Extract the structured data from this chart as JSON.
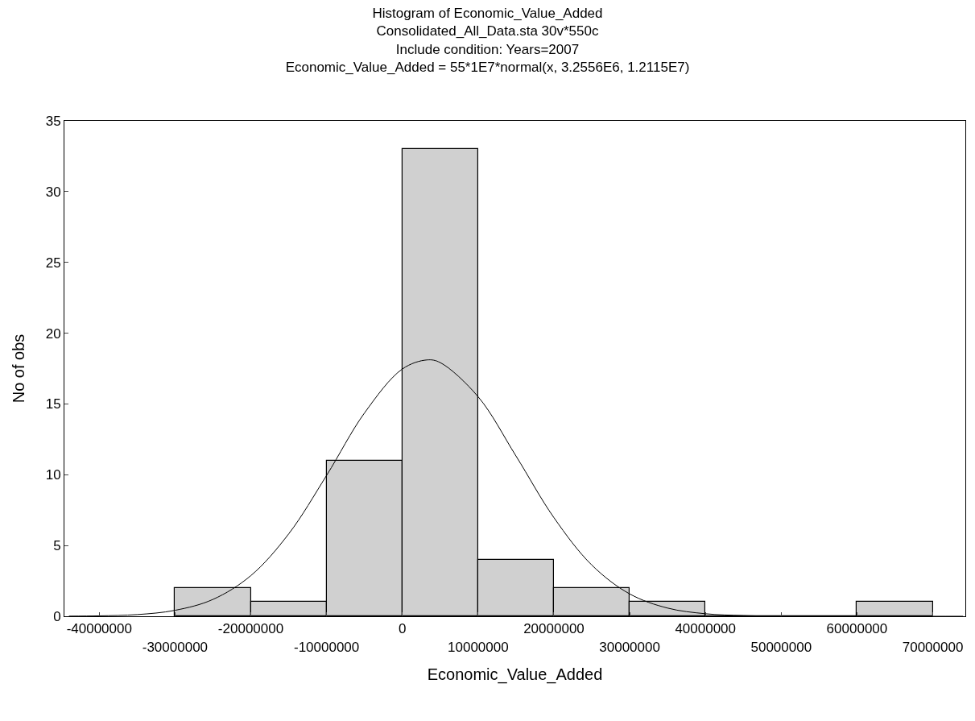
{
  "chart_data": {
    "type": "histogram",
    "title": "Histogram of Economic_Value_Added",
    "subtitle": "Consolidated_All_Data.sta 30v*550c\nInclude condition: Years=2007\nEconomic_Value_Added = 55*1E7*normal(x, 3.2556E6, 1.2115E7)",
    "xlabel": "Economic_Value_Added",
    "ylabel": "No of obs",
    "bins": [
      -30000000,
      -20000000,
      -10000000,
      0,
      10000000,
      20000000,
      30000000,
      40000000,
      50000000,
      60000000,
      70000000
    ],
    "values": [
      2,
      1,
      11,
      33,
      4,
      2,
      1,
      0,
      0,
      1
    ],
    "color": "#d0d0d0",
    "series": [
      {
        "type": "line",
        "color": "#000000",
        "x": [
          -44000000,
          -40000000,
          -35000000,
          -30000000,
          -25000000,
          -20000000,
          -15000000,
          -10000000,
          -5000000,
          0,
          3260000,
          5000000,
          10000000,
          15000000,
          20000000,
          25000000,
          30000000,
          35000000,
          40000000,
          45000000,
          50000000,
          60000000,
          74000000
        ],
        "values": [
          0.01,
          0.03,
          0.12,
          0.42,
          1.19,
          2.87,
          5.82,
          9.95,
          14.36,
          17.47,
          18.11,
          17.92,
          15.51,
          11.32,
          6.97,
          3.62,
          1.58,
          0.58,
          0.18,
          0.05,
          0.01,
          0,
          0
        ]
      }
    ],
    "xlim": [
      -44600000,
      74300000
    ],
    "xticks": [
      -40000000,
      -20000000,
      0,
      20000000,
      40000000,
      60000000
    ],
    "x2lim": [
      -44600000,
      74300000
    ],
    "x2ticks": [
      -30000000,
      -10000000,
      10000000,
      30000000,
      50000000,
      70000000
    ],
    "ylim": [
      0,
      35
    ],
    "yticks": [
      0,
      5,
      10,
      15,
      20,
      25,
      30,
      35
    ]
  }
}
